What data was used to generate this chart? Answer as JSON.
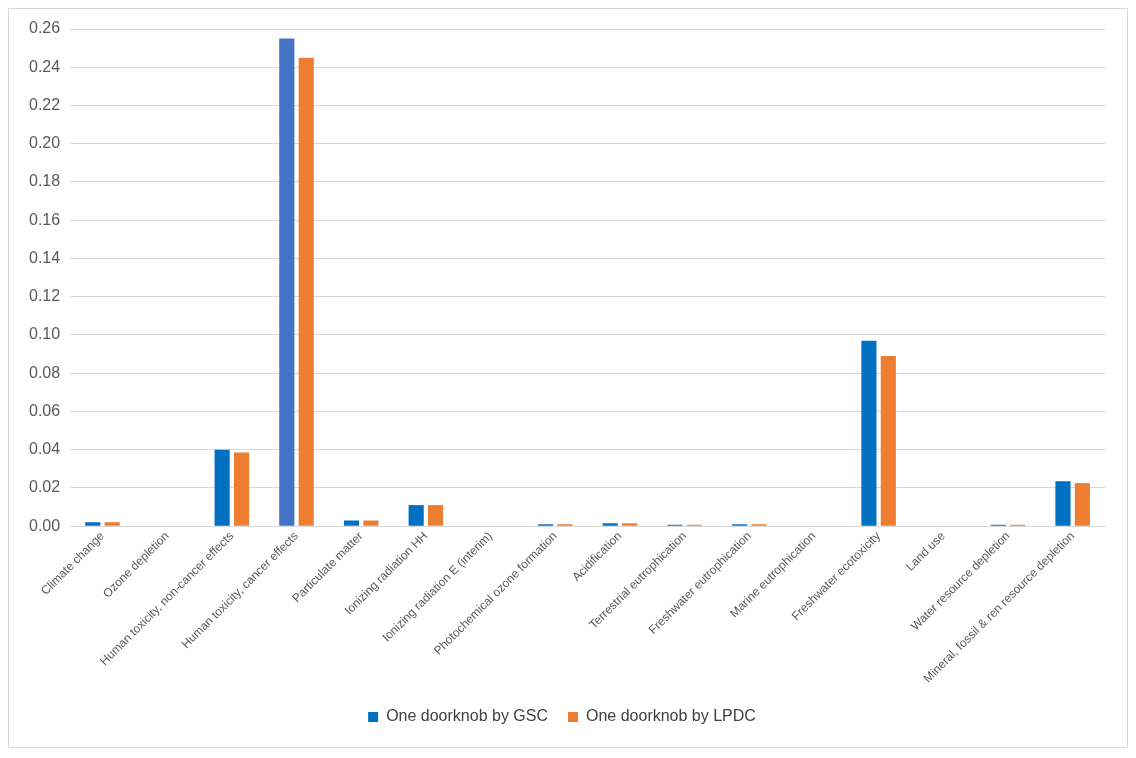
{
  "chart_data": {
    "type": "bar",
    "categories": [
      "Climate change",
      "Ozone depletion",
      "Human toxicity, non-cancer effects",
      "Human toxicity, cancer effects",
      "Particulate matter",
      "Ionizing radiation HH",
      "Ionizing radiation E (interim)",
      "Photochemical ozone formation",
      "Acidification",
      "Terrestrial eutrophication",
      "Freshwater eutrophication",
      "Marine eutrophication",
      "Freshwater ecotoxicity",
      "Land use",
      "Water resource depletion",
      "Mineral, fossil & ren resource depletion"
    ],
    "series": [
      {
        "name": "One doorknob by GSC",
        "color": "#0070c0",
        "colors": [
          "#0070c0",
          "#0070c0",
          "#0070c0",
          "#4472c4",
          "#0070c0",
          "#0070c0",
          "#0070c0",
          "#0070c0",
          "#0070c0",
          "#0070c0",
          "#0070c0",
          "#0070c0",
          "#0070c0",
          "#0070c0",
          "#0070c0",
          "#0070c0"
        ],
        "values": [
          0.002,
          0,
          0.04,
          0.255,
          0.003,
          0.011,
          0,
          0.001,
          0.0015,
          0.0007,
          0.001,
          0,
          0.097,
          0,
          0.0007,
          0.0235
        ]
      },
      {
        "name": "One doorknob by LPDC",
        "color": "#ed7d31",
        "values": [
          0.002,
          0,
          0.0385,
          0.245,
          0.003,
          0.011,
          0,
          0.001,
          0.0015,
          0.0007,
          0.001,
          0,
          0.089,
          0,
          0.0007,
          0.0225
        ]
      }
    ],
    "ylim": [
      0,
      0.26
    ],
    "yticks": [
      {
        "value": 0,
        "label": "0.00"
      },
      {
        "value": 0.02,
        "label": "0.02"
      },
      {
        "value": 0.04,
        "label": "0.04"
      },
      {
        "value": 0.06,
        "label": "0.06"
      },
      {
        "value": 0.08,
        "label": "0.08"
      },
      {
        "value": 0.1,
        "label": "0.10"
      },
      {
        "value": 0.12,
        "label": "0.12"
      },
      {
        "value": 0.14,
        "label": "0.14"
      },
      {
        "value": 0.16,
        "label": "0.16"
      },
      {
        "value": 0.18,
        "label": "0.18"
      },
      {
        "value": 0.2,
        "label": "0.20"
      },
      {
        "value": 0.22,
        "label": "0.22"
      },
      {
        "value": 0.24,
        "label": "0.24"
      },
      {
        "value": 0.26,
        "label": "0.26"
      }
    ],
    "grid": "y",
    "legend": "bottom"
  }
}
